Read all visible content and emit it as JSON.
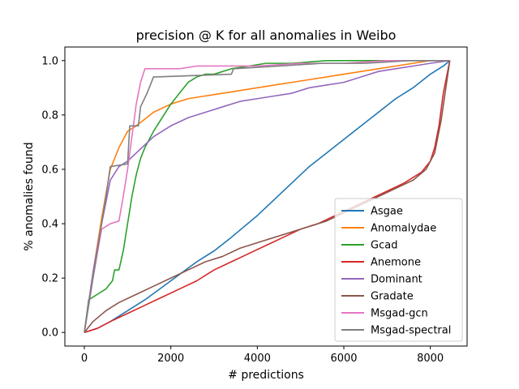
{
  "chart_data": {
    "type": "line",
    "title": "precision @ K for all anomalies in Weibo",
    "xlabel": "# predictions",
    "ylabel": "% anomalies found",
    "xlim": [
      -450,
      8850
    ],
    "ylim": [
      -0.05,
      1.05
    ],
    "xticks": [
      0,
      2000,
      4000,
      6000,
      8000
    ],
    "yticks": [
      0.0,
      0.2,
      0.4,
      0.6,
      0.8,
      1.0
    ],
    "xtick_labels": [
      "0",
      "2000",
      "4000",
      "6000",
      "8000"
    ],
    "ytick_labels": [
      "0.0",
      "0.2",
      "0.4",
      "0.6",
      "0.8",
      "1.0"
    ],
    "grid": false,
    "legend_position": "lower-right",
    "series": [
      {
        "name": "Asgae",
        "color": "#1f77b4",
        "x": [
          0,
          300,
          600,
          1000,
          1400,
          2000,
          2600,
          3000,
          3400,
          4000,
          4400,
          4800,
          5200,
          5600,
          6000,
          6400,
          6800,
          7200,
          7600,
          8000,
          8300,
          8450
        ],
        "y": [
          0.0,
          0.015,
          0.04,
          0.08,
          0.12,
          0.19,
          0.26,
          0.3,
          0.35,
          0.43,
          0.49,
          0.55,
          0.61,
          0.66,
          0.71,
          0.76,
          0.81,
          0.86,
          0.9,
          0.95,
          0.98,
          1.0
        ]
      },
      {
        "name": "Anomalydae",
        "color": "#ff7f0e",
        "x": [
          0,
          200,
          400,
          600,
          800,
          1000,
          1200,
          1600,
          2000,
          2400,
          2800,
          3200,
          3600,
          4000,
          4400,
          4800,
          5200,
          5600,
          6000,
          6400,
          6800,
          7200,
          7600,
          8000,
          8450
        ],
        "y": [
          0.0,
          0.22,
          0.42,
          0.6,
          0.68,
          0.74,
          0.76,
          0.81,
          0.84,
          0.86,
          0.87,
          0.88,
          0.89,
          0.9,
          0.91,
          0.92,
          0.93,
          0.94,
          0.95,
          0.96,
          0.97,
          0.98,
          0.99,
          1.0,
          1.0
        ]
      },
      {
        "name": "Gcad",
        "color": "#2ca02c",
        "x": [
          0,
          100,
          300,
          500,
          650,
          700,
          800,
          900,
          1000,
          1100,
          1200,
          1300,
          1400,
          1600,
          1800,
          2000,
          2200,
          2400,
          2600,
          2800,
          3000,
          3400,
          3800,
          4200,
          4800,
          5600,
          6400,
          7200,
          8000,
          8450
        ],
        "y": [
          0.0,
          0.12,
          0.14,
          0.16,
          0.19,
          0.23,
          0.23,
          0.3,
          0.4,
          0.5,
          0.58,
          0.64,
          0.68,
          0.74,
          0.79,
          0.84,
          0.88,
          0.92,
          0.94,
          0.95,
          0.95,
          0.97,
          0.98,
          0.99,
          0.99,
          1.0,
          1.0,
          1.0,
          1.0,
          1.0
        ]
      },
      {
        "name": "Anemone",
        "color": "#d62728",
        "x": [
          0,
          300,
          600,
          1000,
          1400,
          1800,
          2200,
          2600,
          3000,
          3400,
          3800,
          4200,
          4600,
          5000,
          5400,
          5800,
          6200,
          6600,
          7000,
          7400,
          7800,
          8000,
          8100,
          8200,
          8300,
          8450
        ],
        "y": [
          0.0,
          0.015,
          0.04,
          0.07,
          0.1,
          0.13,
          0.16,
          0.19,
          0.23,
          0.26,
          0.29,
          0.32,
          0.35,
          0.38,
          0.4,
          0.43,
          0.46,
          0.49,
          0.52,
          0.55,
          0.59,
          0.63,
          0.68,
          0.76,
          0.88,
          1.0
        ]
      },
      {
        "name": "Dominant",
        "color": "#9467bd",
        "x": [
          0,
          200,
          400,
          600,
          800,
          1000,
          1200,
          1400,
          1600,
          2000,
          2400,
          2800,
          3200,
          3600,
          4000,
          4400,
          4800,
          5200,
          5600,
          6000,
          6400,
          6800,
          7200,
          7600,
          8000,
          8450
        ],
        "y": [
          0.0,
          0.22,
          0.4,
          0.56,
          0.61,
          0.63,
          0.66,
          0.69,
          0.72,
          0.76,
          0.79,
          0.81,
          0.83,
          0.85,
          0.86,
          0.87,
          0.88,
          0.9,
          0.91,
          0.92,
          0.94,
          0.96,
          0.97,
          0.98,
          0.99,
          1.0
        ]
      },
      {
        "name": "Gradate",
        "color": "#8c564b",
        "x": [
          0,
          200,
          500,
          800,
          1200,
          1600,
          2000,
          2400,
          2800,
          3200,
          3600,
          4000,
          4400,
          4800,
          5200,
          5600,
          6000,
          6400,
          6800,
          7200,
          7600,
          7900,
          8100,
          8250,
          8450
        ],
        "y": [
          0.0,
          0.04,
          0.08,
          0.11,
          0.14,
          0.17,
          0.2,
          0.23,
          0.26,
          0.28,
          0.31,
          0.33,
          0.35,
          0.37,
          0.39,
          0.41,
          0.44,
          0.47,
          0.5,
          0.53,
          0.56,
          0.6,
          0.66,
          0.78,
          1.0
        ]
      },
      {
        "name": "Msgad-gcn",
        "color": "#e377c2",
        "x": [
          0,
          200,
          400,
          500,
          600,
          800,
          900,
          1000,
          1100,
          1200,
          1300,
          1400,
          1800,
          2200,
          2600,
          3000,
          3400,
          4000,
          5000,
          6000,
          7000,
          8000,
          8450
        ],
        "y": [
          0.0,
          0.2,
          0.38,
          0.39,
          0.4,
          0.41,
          0.5,
          0.6,
          0.72,
          0.84,
          0.92,
          0.97,
          0.97,
          0.97,
          0.98,
          0.98,
          0.98,
          0.98,
          0.99,
          0.99,
          1.0,
          1.0,
          1.0
        ]
      },
      {
        "name": "Msgad-spectral",
        "color": "#7f7f7f",
        "x": [
          0,
          200,
          400,
          500,
          600,
          1000,
          1050,
          1250,
          1300,
          1450,
          1600,
          1650,
          3400,
          3450,
          4500,
          5500,
          6500,
          7500,
          8450
        ],
        "y": [
          0.0,
          0.2,
          0.4,
          0.5,
          0.61,
          0.62,
          0.76,
          0.76,
          0.83,
          0.88,
          0.94,
          0.94,
          0.95,
          0.97,
          0.98,
          0.99,
          0.99,
          1.0,
          1.0
        ]
      }
    ]
  }
}
